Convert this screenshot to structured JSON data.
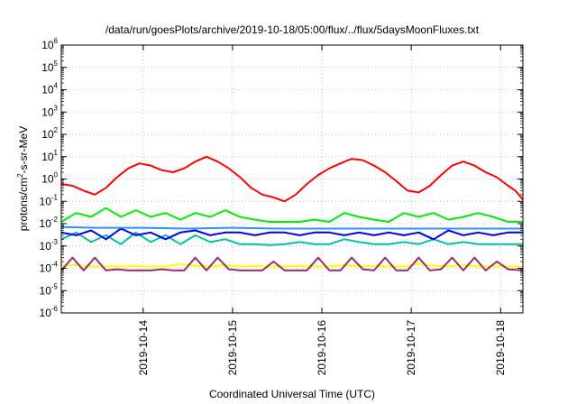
{
  "chart_data": {
    "type": "line",
    "title": "/data/run/goesPlots/archive/2019-10-18/05:00/flux/../flux/5daysMoonFluxes.txt",
    "xlabel": "Coordinated Universal Time (UTC)",
    "ylabel": {
      "prefix": "protons/cm",
      "sup": "2",
      "suffix": "-s-sr-MeV"
    },
    "yscale": "log",
    "ylim": [
      1e-06,
      1000000.0
    ],
    "y_ticks": [
      {
        "base": "10",
        "exp": "-6",
        "value": 1e-06
      },
      {
        "base": "10",
        "exp": "-5",
        "value": 1e-05
      },
      {
        "base": "10",
        "exp": "-4",
        "value": 0.0001
      },
      {
        "base": "10",
        "exp": "-3",
        "value": 0.001
      },
      {
        "base": "10",
        "exp": "-2",
        "value": 0.01
      },
      {
        "base": "10",
        "exp": "-1",
        "value": 0.1
      },
      {
        "base": "10",
        "exp": "0",
        "value": 1
      },
      {
        "base": "10",
        "exp": "1",
        "value": 10
      },
      {
        "base": "10",
        "exp": "2",
        "value": 100
      },
      {
        "base": "10",
        "exp": "3",
        "value": 1000
      },
      {
        "base": "10",
        "exp": "4",
        "value": 10000
      },
      {
        "base": "10",
        "exp": "5",
        "value": 100000
      },
      {
        "base": "10",
        "exp": "6",
        "value": 1000000
      }
    ],
    "xlim": [
      "2019-10-13T02:00",
      "2019-10-18T06:00"
    ],
    "x_ticks": [
      {
        "label": "2019-10-14",
        "value": "2019-10-14T00:00"
      },
      {
        "label": "2019-10-15",
        "value": "2019-10-15T00:00"
      },
      {
        "label": "2019-10-16",
        "value": "2019-10-16T00:00"
      },
      {
        "label": "2019-10-17",
        "value": "2019-10-17T00:00"
      },
      {
        "label": "2019-10-18",
        "value": "2019-10-18T00:00"
      }
    ],
    "grid": true,
    "legend": "none",
    "series": [
      {
        "color": "#ff0000",
        "x": [
          "2019-10-13T02:00",
          "2019-10-13T05:00",
          "2019-10-13T08:00",
          "2019-10-13T11:00",
          "2019-10-13T14:00",
          "2019-10-13T17:00",
          "2019-10-13T20:00",
          "2019-10-13T23:00",
          "2019-10-14T02:00",
          "2019-10-14T05:00",
          "2019-10-14T08:00",
          "2019-10-14T11:00",
          "2019-10-14T14:00",
          "2019-10-14T17:00",
          "2019-10-14T20:00",
          "2019-10-14T23:00",
          "2019-10-15T02:00",
          "2019-10-15T05:00",
          "2019-10-15T08:00",
          "2019-10-15T11:00",
          "2019-10-15T14:00",
          "2019-10-15T17:00",
          "2019-10-15T20:00",
          "2019-10-15T23:00",
          "2019-10-16T02:00",
          "2019-10-16T05:00",
          "2019-10-16T08:00",
          "2019-10-16T11:00",
          "2019-10-16T14:00",
          "2019-10-16T17:00",
          "2019-10-16T20:00",
          "2019-10-16T23:00",
          "2019-10-17T02:00",
          "2019-10-17T05:00",
          "2019-10-17T08:00",
          "2019-10-17T11:00",
          "2019-10-17T14:00",
          "2019-10-17T17:00",
          "2019-10-17T20:00",
          "2019-10-17T23:00",
          "2019-10-18T02:00",
          "2019-10-18T04:00",
          "2019-10-18T06:00"
        ],
        "y": [
          0.6,
          0.5,
          0.3,
          0.2,
          0.4,
          1.2,
          3,
          5,
          4,
          2.5,
          2,
          3,
          6,
          10,
          6,
          3,
          1.2,
          0.4,
          0.2,
          0.15,
          0.1,
          0.2,
          0.6,
          1.5,
          3,
          5,
          8,
          7,
          4,
          2,
          0.8,
          0.3,
          0.25,
          0.5,
          1.5,
          4,
          6,
          4,
          2,
          1.2,
          0.5,
          0.3,
          0.12
        ]
      },
      {
        "color": "#00ee00",
        "x": [
          "2019-10-13T02:00",
          "2019-10-13T06:00",
          "2019-10-13T10:00",
          "2019-10-13T14:00",
          "2019-10-13T18:00",
          "2019-10-13T22:00",
          "2019-10-14T02:00",
          "2019-10-14T06:00",
          "2019-10-14T10:00",
          "2019-10-14T14:00",
          "2019-10-14T18:00",
          "2019-10-14T22:00",
          "2019-10-15T02:00",
          "2019-10-15T06:00",
          "2019-10-15T10:00",
          "2019-10-15T14:00",
          "2019-10-15T18:00",
          "2019-10-15T22:00",
          "2019-10-16T02:00",
          "2019-10-16T06:00",
          "2019-10-16T10:00",
          "2019-10-16T14:00",
          "2019-10-16T18:00",
          "2019-10-16T22:00",
          "2019-10-17T02:00",
          "2019-10-17T06:00",
          "2019-10-17T10:00",
          "2019-10-17T14:00",
          "2019-10-17T18:00",
          "2019-10-17T22:00",
          "2019-10-18T02:00",
          "2019-10-18T06:00"
        ],
        "y": [
          0.012,
          0.03,
          0.02,
          0.05,
          0.02,
          0.04,
          0.02,
          0.03,
          0.015,
          0.03,
          0.02,
          0.04,
          0.02,
          0.015,
          0.012,
          0.012,
          0.012,
          0.015,
          0.012,
          0.03,
          0.02,
          0.015,
          0.012,
          0.03,
          0.02,
          0.03,
          0.015,
          0.02,
          0.03,
          0.02,
          0.012,
          0.012
        ]
      },
      {
        "color": "#00c4a0",
        "x": [
          "2019-10-13T02:00",
          "2019-10-13T06:00",
          "2019-10-13T10:00",
          "2019-10-13T14:00",
          "2019-10-13T18:00",
          "2019-10-13T22:00",
          "2019-10-14T02:00",
          "2019-10-14T06:00",
          "2019-10-14T10:00",
          "2019-10-14T14:00",
          "2019-10-14T18:00",
          "2019-10-14T22:00",
          "2019-10-15T02:00",
          "2019-10-15T06:00",
          "2019-10-15T10:00",
          "2019-10-15T14:00",
          "2019-10-15T18:00",
          "2019-10-15T22:00",
          "2019-10-16T02:00",
          "2019-10-16T06:00",
          "2019-10-16T10:00",
          "2019-10-16T14:00",
          "2019-10-16T18:00",
          "2019-10-16T22:00",
          "2019-10-17T02:00",
          "2019-10-17T06:00",
          "2019-10-17T10:00",
          "2019-10-17T14:00",
          "2019-10-17T18:00",
          "2019-10-17T22:00",
          "2019-10-18T02:00",
          "2019-10-18T06:00"
        ],
        "y": [
          0.002,
          0.004,
          0.0015,
          0.003,
          0.0012,
          0.004,
          0.0015,
          0.003,
          0.0012,
          0.003,
          0.0015,
          0.002,
          0.0012,
          0.0012,
          0.0011,
          0.0012,
          0.0015,
          0.0012,
          0.0012,
          0.002,
          0.0015,
          0.0012,
          0.0012,
          0.0015,
          0.0012,
          0.002,
          0.0012,
          0.0015,
          0.0012,
          0.0012,
          0.0012,
          0.0012
        ]
      },
      {
        "color": "#0000ee",
        "x": [
          "2019-10-13T02:00",
          "2019-10-13T06:00",
          "2019-10-13T10:00",
          "2019-10-13T14:00",
          "2019-10-13T18:00",
          "2019-10-13T22:00",
          "2019-10-14T02:00",
          "2019-10-14T06:00",
          "2019-10-14T10:00",
          "2019-10-14T14:00",
          "2019-10-14T18:00",
          "2019-10-14T22:00",
          "2019-10-15T02:00",
          "2019-10-15T06:00",
          "2019-10-15T10:00",
          "2019-10-15T14:00",
          "2019-10-15T18:00",
          "2019-10-15T22:00",
          "2019-10-16T02:00",
          "2019-10-16T06:00",
          "2019-10-16T10:00",
          "2019-10-16T14:00",
          "2019-10-16T18:00",
          "2019-10-16T22:00",
          "2019-10-17T02:00",
          "2019-10-17T06:00",
          "2019-10-17T10:00",
          "2019-10-17T14:00",
          "2019-10-17T18:00",
          "2019-10-17T22:00",
          "2019-10-18T02:00",
          "2019-10-18T06:00"
        ],
        "y": [
          0.004,
          0.003,
          0.005,
          0.002,
          0.006,
          0.003,
          0.004,
          0.002,
          0.004,
          0.005,
          0.003,
          0.004,
          0.004,
          0.003,
          0.004,
          0.004,
          0.003,
          0.004,
          0.004,
          0.003,
          0.004,
          0.003,
          0.004,
          0.003,
          0.004,
          0.002,
          0.005,
          0.003,
          0.004,
          0.003,
          0.004,
          0.004
        ]
      },
      {
        "color": "#3090ff",
        "x": [
          "2019-10-13T02:00",
          "2019-10-13T12:00",
          "2019-10-14T00:00",
          "2019-10-14T12:00",
          "2019-10-15T00:00",
          "2019-10-15T12:00",
          "2019-10-16T00:00",
          "2019-10-16T12:00",
          "2019-10-17T00:00",
          "2019-10-17T12:00",
          "2019-10-18T00:00",
          "2019-10-18T06:00"
        ],
        "y": [
          0.007,
          0.0065,
          0.0065,
          0.006,
          0.0065,
          0.006,
          0.006,
          0.006,
          0.006,
          0.006,
          0.006,
          0.006
        ]
      },
      {
        "color": "#ffff00",
        "x": [
          "2019-10-13T02:00",
          "2019-10-13T06:00",
          "2019-10-13T10:00",
          "2019-10-13T14:00",
          "2019-10-13T18:00",
          "2019-10-13T22:00",
          "2019-10-14T02:00",
          "2019-10-14T06:00",
          "2019-10-14T10:00",
          "2019-10-14T14:00",
          "2019-10-14T18:00",
          "2019-10-14T22:00",
          "2019-10-15T02:00",
          "2019-10-15T06:00",
          "2019-10-15T10:00",
          "2019-10-15T14:00",
          "2019-10-15T18:00",
          "2019-10-15T22:00",
          "2019-10-16T02:00",
          "2019-10-16T06:00",
          "2019-10-16T10:00",
          "2019-10-16T14:00",
          "2019-10-16T18:00",
          "2019-10-16T22:00",
          "2019-10-17T02:00",
          "2019-10-17T06:00",
          "2019-10-17T10:00",
          "2019-10-17T14:00",
          "2019-10-17T18:00",
          "2019-10-17T22:00",
          "2019-10-18T02:00",
          "2019-10-18T06:00"
        ],
        "y": [
          0.00013,
          0.00014,
          0.00012,
          0.00012,
          0.00012,
          0.00013,
          0.00012,
          0.00012,
          0.00015,
          0.00013,
          0.00012,
          0.00014,
          0.00012,
          0.00013,
          0.00012,
          0.00012,
          0.00013,
          0.00012,
          0.00012,
          0.00014,
          0.00012,
          0.00013,
          0.00012,
          0.00012,
          0.00016,
          0.00013,
          0.00012,
          0.00014,
          0.00012,
          0.00012,
          0.00012,
          0.00012
        ]
      },
      {
        "color": "#9a2d74",
        "x": [
          "2019-10-13T02:00",
          "2019-10-13T05:00",
          "2019-10-13T08:00",
          "2019-10-13T11:00",
          "2019-10-13T14:00",
          "2019-10-13T17:00",
          "2019-10-13T20:00",
          "2019-10-13T23:00",
          "2019-10-14T02:00",
          "2019-10-14T05:00",
          "2019-10-14T08:00",
          "2019-10-14T11:00",
          "2019-10-14T14:00",
          "2019-10-14T17:00",
          "2019-10-14T20:00",
          "2019-10-14T23:00",
          "2019-10-15T02:00",
          "2019-10-15T05:00",
          "2019-10-15T08:00",
          "2019-10-15T11:00",
          "2019-10-15T14:00",
          "2019-10-15T17:00",
          "2019-10-15T20:00",
          "2019-10-15T23:00",
          "2019-10-16T02:00",
          "2019-10-16T05:00",
          "2019-10-16T08:00",
          "2019-10-16T11:00",
          "2019-10-16T14:00",
          "2019-10-16T17:00",
          "2019-10-16T20:00",
          "2019-10-16T23:00",
          "2019-10-17T02:00",
          "2019-10-17T05:00",
          "2019-10-17T08:00",
          "2019-10-17T11:00",
          "2019-10-17T14:00",
          "2019-10-17T17:00",
          "2019-10-17T20:00",
          "2019-10-17T23:00",
          "2019-10-18T02:00",
          "2019-10-18T06:00"
        ],
        "y": [
          8e-05,
          0.0003,
          8e-05,
          0.0003,
          8e-05,
          9e-05,
          8e-05,
          8e-05,
          8e-05,
          9e-05,
          8e-05,
          8e-05,
          0.0003,
          8e-05,
          0.0003,
          9e-05,
          8e-05,
          8e-05,
          8e-05,
          0.0002,
          8e-05,
          8e-05,
          8e-05,
          0.0003,
          8e-05,
          8e-05,
          0.0003,
          9e-05,
          8e-05,
          0.0003,
          8e-05,
          8e-05,
          0.0003,
          8e-05,
          9e-05,
          0.0003,
          8e-05,
          0.0003,
          8e-05,
          0.0002,
          9e-05,
          8e-05
        ]
      }
    ]
  }
}
